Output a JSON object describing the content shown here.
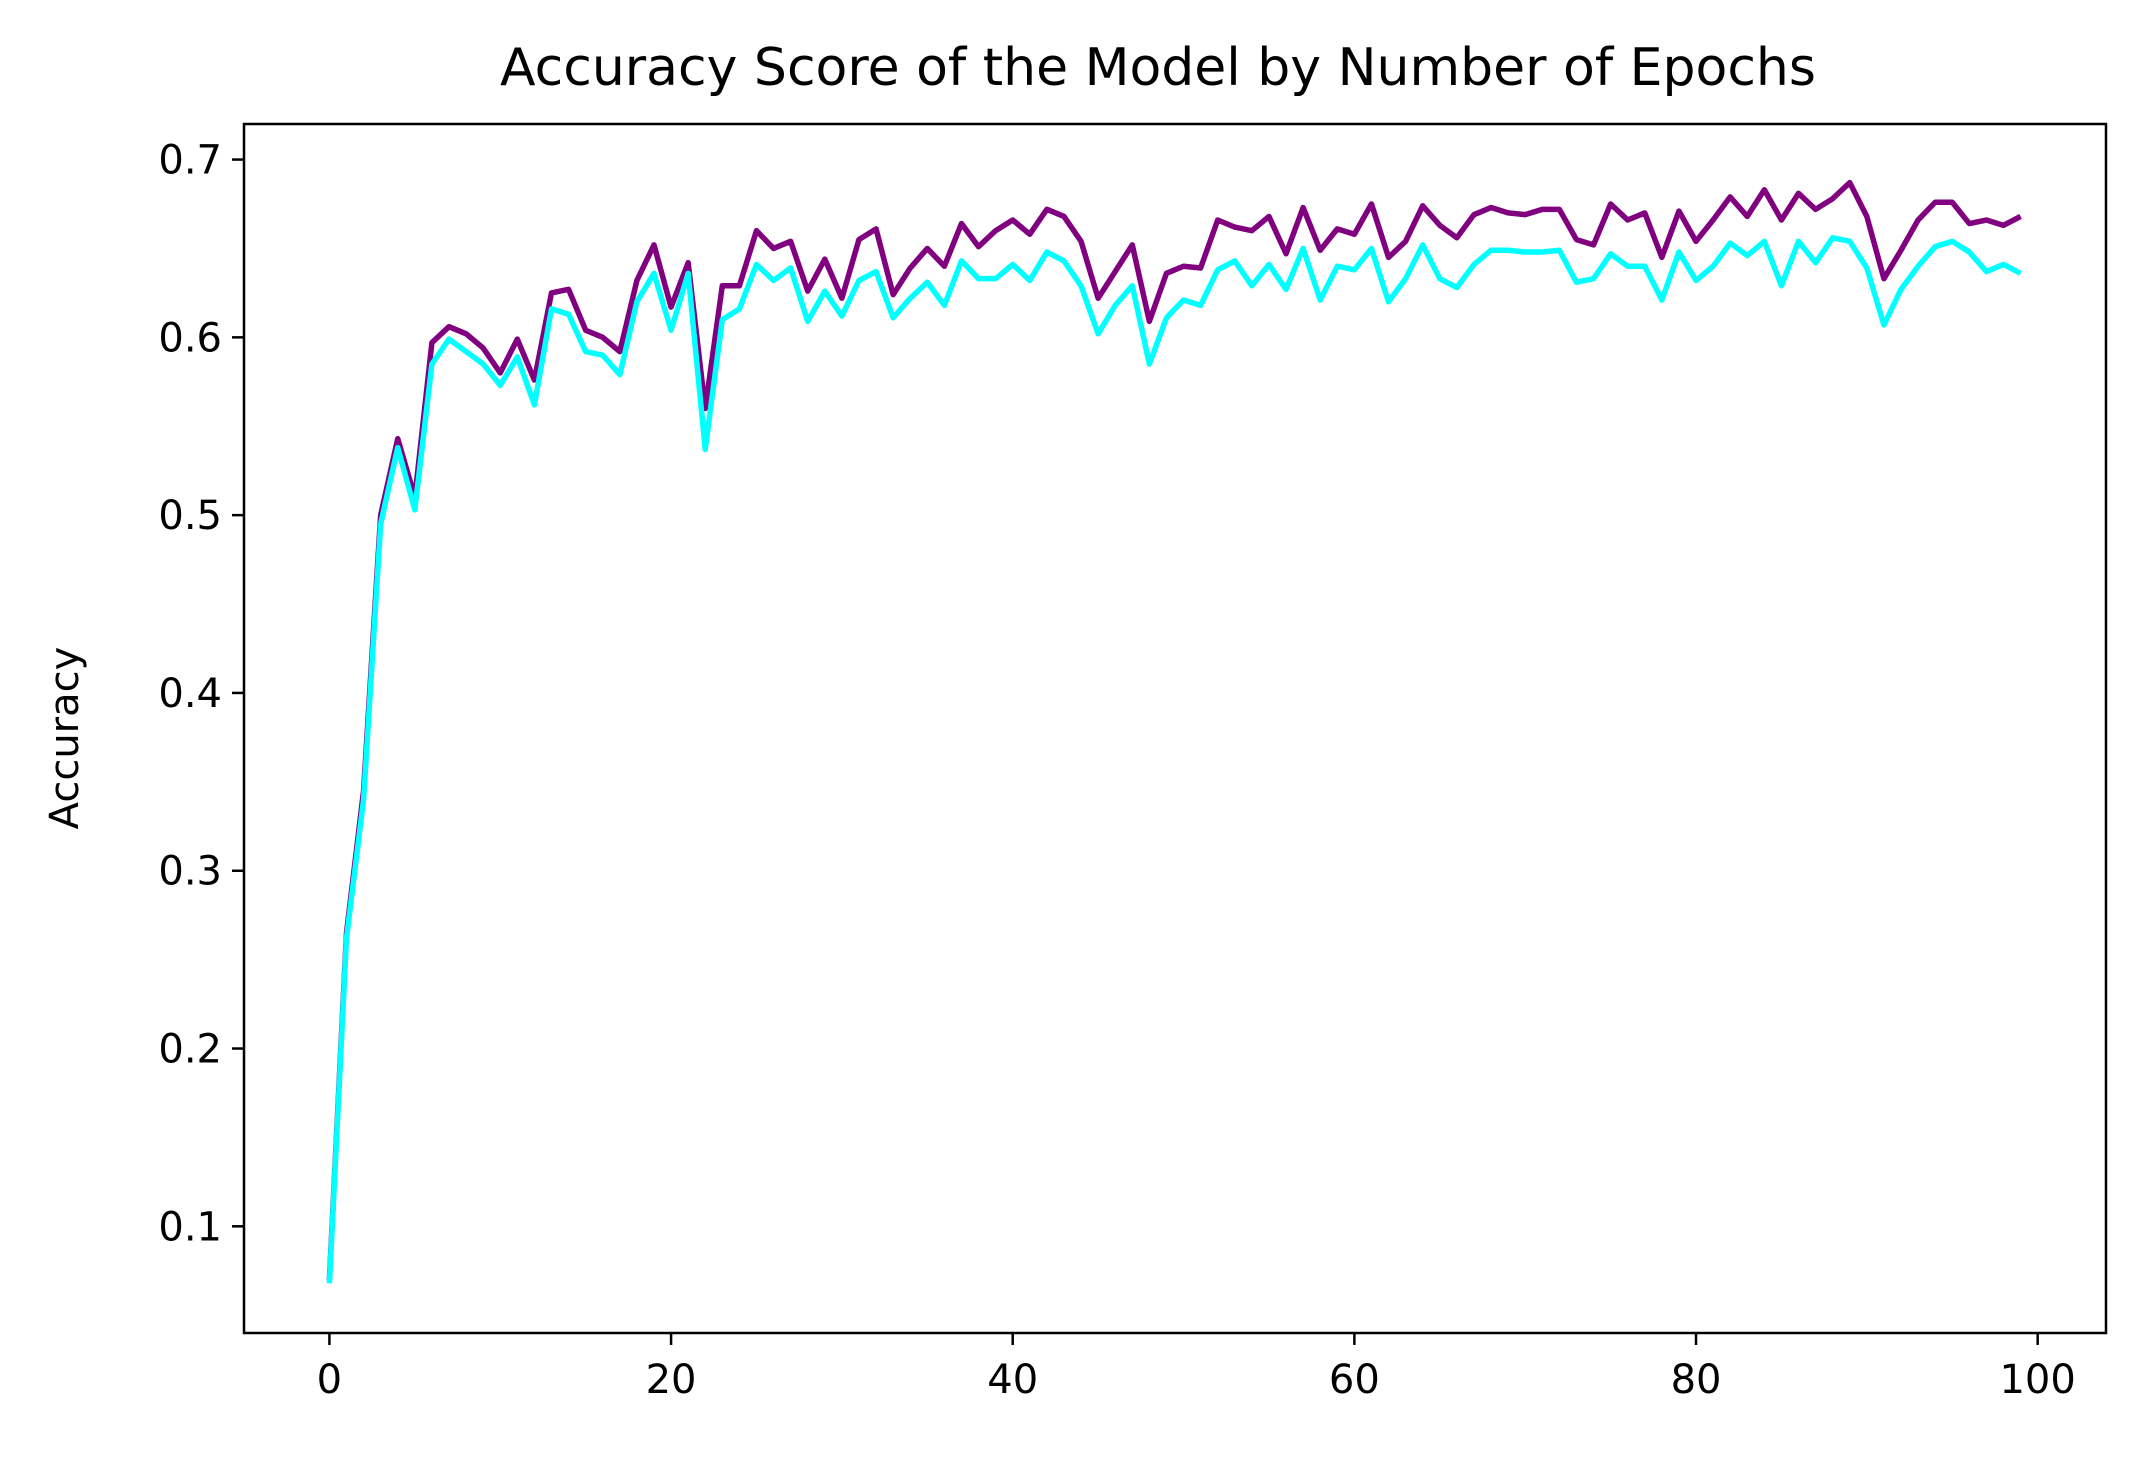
{
  "chart_data": {
    "type": "line",
    "title": "Accuracy Score of the Model by Number of Epochs",
    "xlabel": "",
    "ylabel": "Accuracy",
    "xlim": [
      -5,
      104
    ],
    "ylim": [
      0.04,
      0.72
    ],
    "xticks": [
      0,
      20,
      40,
      60,
      80,
      100
    ],
    "yticks": [
      0.1,
      0.2,
      0.3,
      0.4,
      0.5,
      0.6,
      0.7
    ],
    "grid": false,
    "legend": "none",
    "series": [
      {
        "color": "#800080",
        "values": [
          0.07,
          0.265,
          0.345,
          0.5,
          0.543,
          0.51,
          0.597,
          0.606,
          0.602,
          0.594,
          0.58,
          0.599,
          0.576,
          0.625,
          0.627,
          0.604,
          0.6,
          0.592,
          0.632,
          0.652,
          0.617,
          0.642,
          0.56,
          0.629,
          0.629,
          0.66,
          0.65,
          0.654,
          0.626,
          0.644,
          0.622,
          0.655,
          0.661,
          0.624,
          0.639,
          0.65,
          0.64,
          0.664,
          0.651,
          0.66,
          0.666,
          0.658,
          0.672,
          0.668,
          0.654,
          0.622,
          0.637,
          0.652,
          0.609,
          0.636,
          0.64,
          0.639,
          0.666,
          0.662,
          0.66,
          0.668,
          0.647,
          0.673,
          0.649,
          0.661,
          0.658,
          0.675,
          0.645,
          0.654,
          0.674,
          0.663,
          0.656,
          0.669,
          0.673,
          0.67,
          0.669,
          0.672,
          0.672,
          0.655,
          0.652,
          0.675,
          0.666,
          0.67,
          0.645,
          0.671,
          0.654,
          0.666,
          0.679,
          0.668,
          0.683,
          0.666,
          0.681,
          0.672,
          0.678,
          0.687,
          0.668,
          0.633,
          0.649,
          0.666,
          0.676,
          0.676,
          0.664,
          0.666,
          0.663,
          0.668
        ]
      },
      {
        "color": "#00FFFF",
        "values": [
          0.068,
          0.262,
          0.34,
          0.495,
          0.538,
          0.503,
          0.585,
          0.599,
          0.592,
          0.585,
          0.573,
          0.589,
          0.562,
          0.616,
          0.613,
          0.592,
          0.59,
          0.579,
          0.62,
          0.636,
          0.604,
          0.636,
          0.537,
          0.61,
          0.616,
          0.641,
          0.632,
          0.639,
          0.609,
          0.626,
          0.612,
          0.632,
          0.637,
          0.611,
          0.622,
          0.631,
          0.618,
          0.643,
          0.633,
          0.633,
          0.641,
          0.632,
          0.648,
          0.643,
          0.629,
          0.602,
          0.618,
          0.629,
          0.585,
          0.611,
          0.621,
          0.618,
          0.638,
          0.643,
          0.629,
          0.641,
          0.627,
          0.65,
          0.621,
          0.64,
          0.638,
          0.65,
          0.62,
          0.633,
          0.652,
          0.633,
          0.628,
          0.641,
          0.649,
          0.649,
          0.648,
          0.648,
          0.649,
          0.631,
          0.633,
          0.647,
          0.64,
          0.64,
          0.621,
          0.648,
          0.632,
          0.64,
          0.653,
          0.646,
          0.654,
          0.629,
          0.654,
          0.642,
          0.656,
          0.654,
          0.639,
          0.607,
          0.627,
          0.64,
          0.651,
          0.654,
          0.648,
          0.637,
          0.641,
          0.636
        ]
      }
    ]
  }
}
